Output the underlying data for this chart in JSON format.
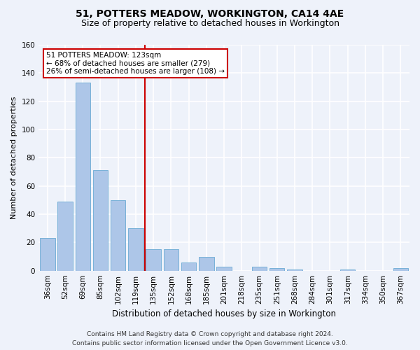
{
  "title": "51, POTTERS MEADOW, WORKINGTON, CA14 4AE",
  "subtitle": "Size of property relative to detached houses in Workington",
  "xlabel": "Distribution of detached houses by size in Workington",
  "ylabel": "Number of detached properties",
  "categories": [
    "36sqm",
    "52sqm",
    "69sqm",
    "85sqm",
    "102sqm",
    "119sqm",
    "135sqm",
    "152sqm",
    "168sqm",
    "185sqm",
    "201sqm",
    "218sqm",
    "235sqm",
    "251sqm",
    "268sqm",
    "284sqm",
    "301sqm",
    "317sqm",
    "334sqm",
    "350sqm",
    "367sqm"
  ],
  "values": [
    23,
    49,
    133,
    71,
    50,
    30,
    15,
    15,
    6,
    10,
    3,
    0,
    3,
    2,
    1,
    0,
    0,
    1,
    0,
    0,
    2
  ],
  "bar_color": "#adc6e8",
  "bar_edge_color": "#6aaad4",
  "property_line_index": 5,
  "property_line_color": "#cc0000",
  "annotation_text": "51 POTTERS MEADOW: 123sqm\n← 68% of detached houses are smaller (279)\n26% of semi-detached houses are larger (108) →",
  "annotation_box_facecolor": "#ffffff",
  "annotation_box_edgecolor": "#cc0000",
  "ylim": [
    0,
    160
  ],
  "yticks": [
    0,
    20,
    40,
    60,
    80,
    100,
    120,
    140,
    160
  ],
  "footer_line1": "Contains HM Land Registry data © Crown copyright and database right 2024.",
  "footer_line2": "Contains public sector information licensed under the Open Government Licence v3.0.",
  "background_color": "#eef2fa",
  "grid_color": "#ffffff",
  "title_fontsize": 10,
  "subtitle_fontsize": 9,
  "xlabel_fontsize": 8.5,
  "ylabel_fontsize": 8,
  "tick_fontsize": 7.5,
  "annotation_fontsize": 7.5,
  "footer_fontsize": 6.5
}
